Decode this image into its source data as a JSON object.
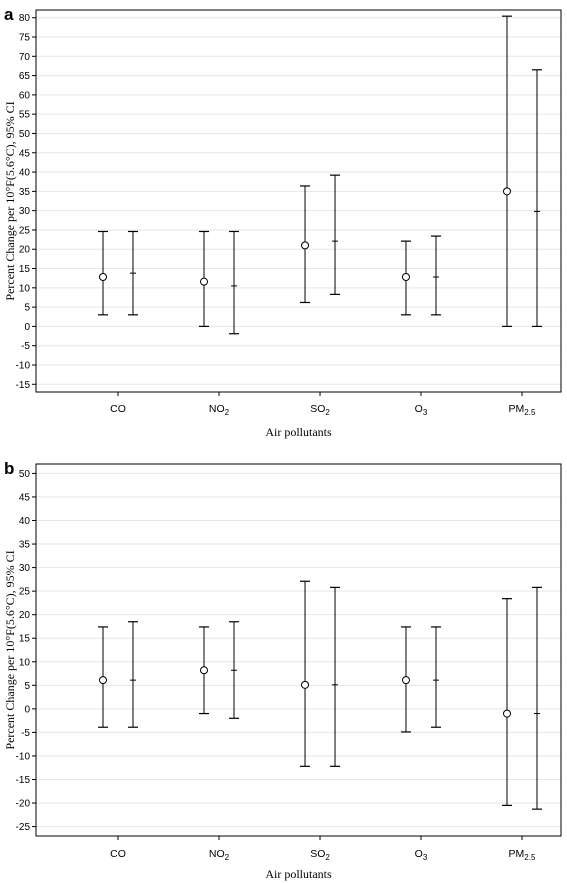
{
  "chart_data": [
    {
      "type": "error-bar",
      "panel_label": "a",
      "xlabel": "Air pollutants",
      "ylabel": "Percent Change per 10°F(5.6°C), 95% CI",
      "ylim": [
        -17,
        82
      ],
      "yticks": [
        -15,
        -10,
        -5,
        0,
        5,
        10,
        15,
        20,
        25,
        30,
        35,
        40,
        45,
        50,
        55,
        60,
        65,
        70,
        75,
        80
      ],
      "grid": "horizontal",
      "categories": [
        {
          "name": "CO",
          "sub": ""
        },
        {
          "name": "NO",
          "sub": "2"
        },
        {
          "name": "SO",
          "sub": "2"
        },
        {
          "name": "O",
          "sub": "3"
        },
        {
          "name": "PM",
          "sub": "2.5"
        }
      ],
      "series": [
        {
          "marker": "circle",
          "estimate": [
            12.8,
            11.6,
            21.0,
            12.8,
            35.0
          ],
          "lower": [
            3.0,
            0.0,
            6.2,
            3.0,
            0.0
          ],
          "upper": [
            24.6,
            24.6,
            36.4,
            22.1,
            80.4
          ]
        },
        {
          "marker": "dash",
          "estimate": [
            13.8,
            10.5,
            22.1,
            12.8,
            29.8
          ],
          "lower": [
            3.0,
            -1.9,
            8.3,
            3.0,
            0.0
          ],
          "upper": [
            24.6,
            24.6,
            39.2,
            23.4,
            66.5
          ]
        }
      ]
    },
    {
      "type": "error-bar",
      "panel_label": "b",
      "xlabel": "Air pollutants",
      "ylabel": "Percent Change per 10°F(5.6°C), 95% CI",
      "ylim": [
        -27,
        52
      ],
      "yticks": [
        -25,
        -20,
        -15,
        -10,
        -5,
        0,
        5,
        10,
        15,
        20,
        25,
        30,
        35,
        40,
        45,
        50
      ],
      "grid": "horizontal",
      "categories": [
        {
          "name": "CO",
          "sub": ""
        },
        {
          "name": "NO",
          "sub": "2"
        },
        {
          "name": "SO",
          "sub": "2"
        },
        {
          "name": "O",
          "sub": "3"
        },
        {
          "name": "PM",
          "sub": "2.5"
        }
      ],
      "series": [
        {
          "marker": "circle",
          "estimate": [
            6.1,
            8.2,
            5.1,
            6.1,
            -1.0
          ],
          "lower": [
            -3.9,
            -1.0,
            -12.2,
            -4.9,
            -20.5
          ],
          "upper": [
            17.4,
            17.4,
            27.1,
            17.4,
            23.4
          ]
        },
        {
          "marker": "dash",
          "estimate": [
            6.1,
            8.2,
            5.1,
            6.1,
            -1.0
          ],
          "lower": [
            -3.9,
            -2.0,
            -12.2,
            -3.9,
            -21.3
          ],
          "upper": [
            18.5,
            18.5,
            25.8,
            17.4,
            25.8
          ]
        }
      ]
    }
  ]
}
